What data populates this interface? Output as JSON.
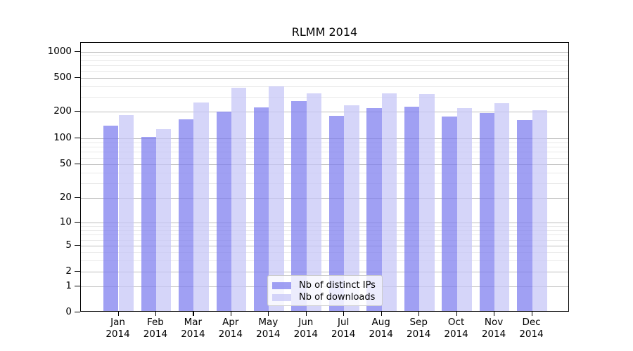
{
  "title": "RLMM 2014",
  "legend": {
    "items": [
      {
        "label": "Nb of distinct IPs",
        "color": "rgba(124,124,239,0.72)"
      },
      {
        "label": "Nb of downloads",
        "color": "rgba(197,197,246,0.72)"
      }
    ]
  },
  "axes": {
    "y_tick_labels": [
      "1000",
      "500",
      "200",
      "100",
      "50",
      "20",
      "10",
      "5",
      "2",
      "1",
      "0"
    ],
    "x_tick_months": [
      "Jan",
      "Feb",
      "Mar",
      "Apr",
      "May",
      "Jun",
      "Jul",
      "Aug",
      "Sep",
      "Oct",
      "Nov",
      "Dec"
    ],
    "x_tick_year": "2014"
  },
  "colors": {
    "ips_bar": "rgba(124,124,239,0.72)",
    "downloads_bar": "rgba(197,197,246,0.72)",
    "grid_major": "#bdbdbd",
    "grid_minor": "#e9e9e9",
    "spine": "#000000"
  },
  "chart_data": {
    "type": "bar",
    "title": "RLMM 2014",
    "categories": [
      "Jan 2014",
      "Feb 2014",
      "Mar 2014",
      "Apr 2014",
      "May 2014",
      "Jun 2014",
      "Jul 2014",
      "Aug 2014",
      "Sep 2014",
      "Oct 2014",
      "Nov 2014",
      "Dec 2014"
    ],
    "series": [
      {
        "name": "Nb of distinct IPs",
        "values": [
          135,
          100,
          157,
          193,
          218,
          255,
          172,
          210,
          222,
          170,
          187,
          155
        ]
      },
      {
        "name": "Nb of downloads",
        "values": [
          175,
          123,
          245,
          372,
          381,
          318,
          230,
          317,
          310,
          214,
          243,
          202
        ]
      }
    ],
    "xlabel": "",
    "ylabel": "",
    "yscale": "symlog-like",
    "yticks": [
      0,
      1,
      2,
      5,
      10,
      20,
      50,
      100,
      200,
      500,
      1000
    ],
    "yticks_minor": [
      3,
      4,
      6,
      7,
      8,
      9,
      30,
      40,
      60,
      70,
      80,
      90,
      300,
      400,
      600,
      700,
      800,
      900
    ],
    "ylim": [
      0,
      1100
    ],
    "grid": true,
    "legend_position": "lower center"
  }
}
